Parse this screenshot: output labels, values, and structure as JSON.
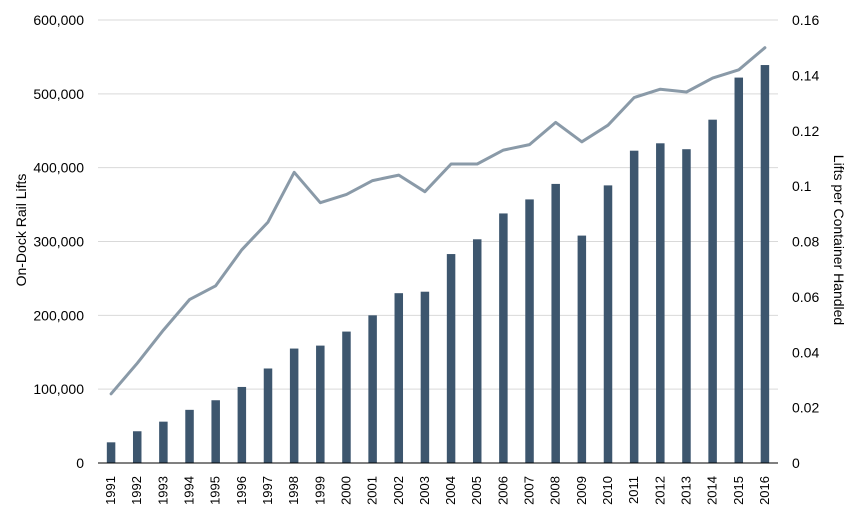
{
  "chart_data": {
    "type": "bar+line",
    "categories": [
      "1991",
      "1992",
      "1993",
      "1994",
      "1995",
      "1996",
      "1997",
      "1998",
      "1999",
      "2000",
      "2001",
      "2002",
      "2003",
      "2004",
      "2005",
      "2006",
      "2007",
      "2008",
      "2009",
      "2010",
      "2011",
      "2012",
      "2013",
      "2014",
      "2015",
      "2016"
    ],
    "series": [
      {
        "type": "bar",
        "axis": "left",
        "values": [
          28000,
          43000,
          56000,
          72000,
          85000,
          103000,
          128000,
          155000,
          159000,
          178000,
          200000,
          230000,
          232000,
          283000,
          303000,
          338000,
          357000,
          378000,
          308000,
          376000,
          423000,
          433000,
          425000,
          465000,
          522000,
          539000
        ]
      },
      {
        "type": "line",
        "axis": "right",
        "values": [
          0.025,
          0.036,
          0.048,
          0.059,
          0.064,
          0.077,
          0.087,
          0.105,
          0.094,
          0.097,
          0.102,
          0.104,
          0.098,
          0.108,
          0.108,
          0.113,
          0.115,
          0.123,
          0.116,
          0.122,
          0.132,
          0.135,
          0.134,
          0.139,
          0.142,
          0.15
        ]
      }
    ],
    "y_left": {
      "label": "On-Dock Rail Lifts",
      "min": 0,
      "max": 600000,
      "ticks": [
        0,
        100000,
        200000,
        300000,
        400000,
        500000,
        600000
      ],
      "tick_labels": [
        "0",
        "100,000",
        "200,000",
        "300,000",
        "400,000",
        "500,000",
        "600,000"
      ]
    },
    "y_right": {
      "label": "Lifts per Container Handled",
      "min": 0,
      "max": 0.16,
      "tick_labels": [
        "0",
        "0.02",
        "0.04",
        "0.06",
        "0.08",
        "0.1",
        "0.12",
        "0.14",
        "0.16"
      ]
    },
    "grid": true,
    "legend": "none",
    "colors": {
      "bar": "#3d566e",
      "line": "#8a9aa8",
      "grid": "#d9d9d9",
      "axis": "#000000"
    }
  }
}
